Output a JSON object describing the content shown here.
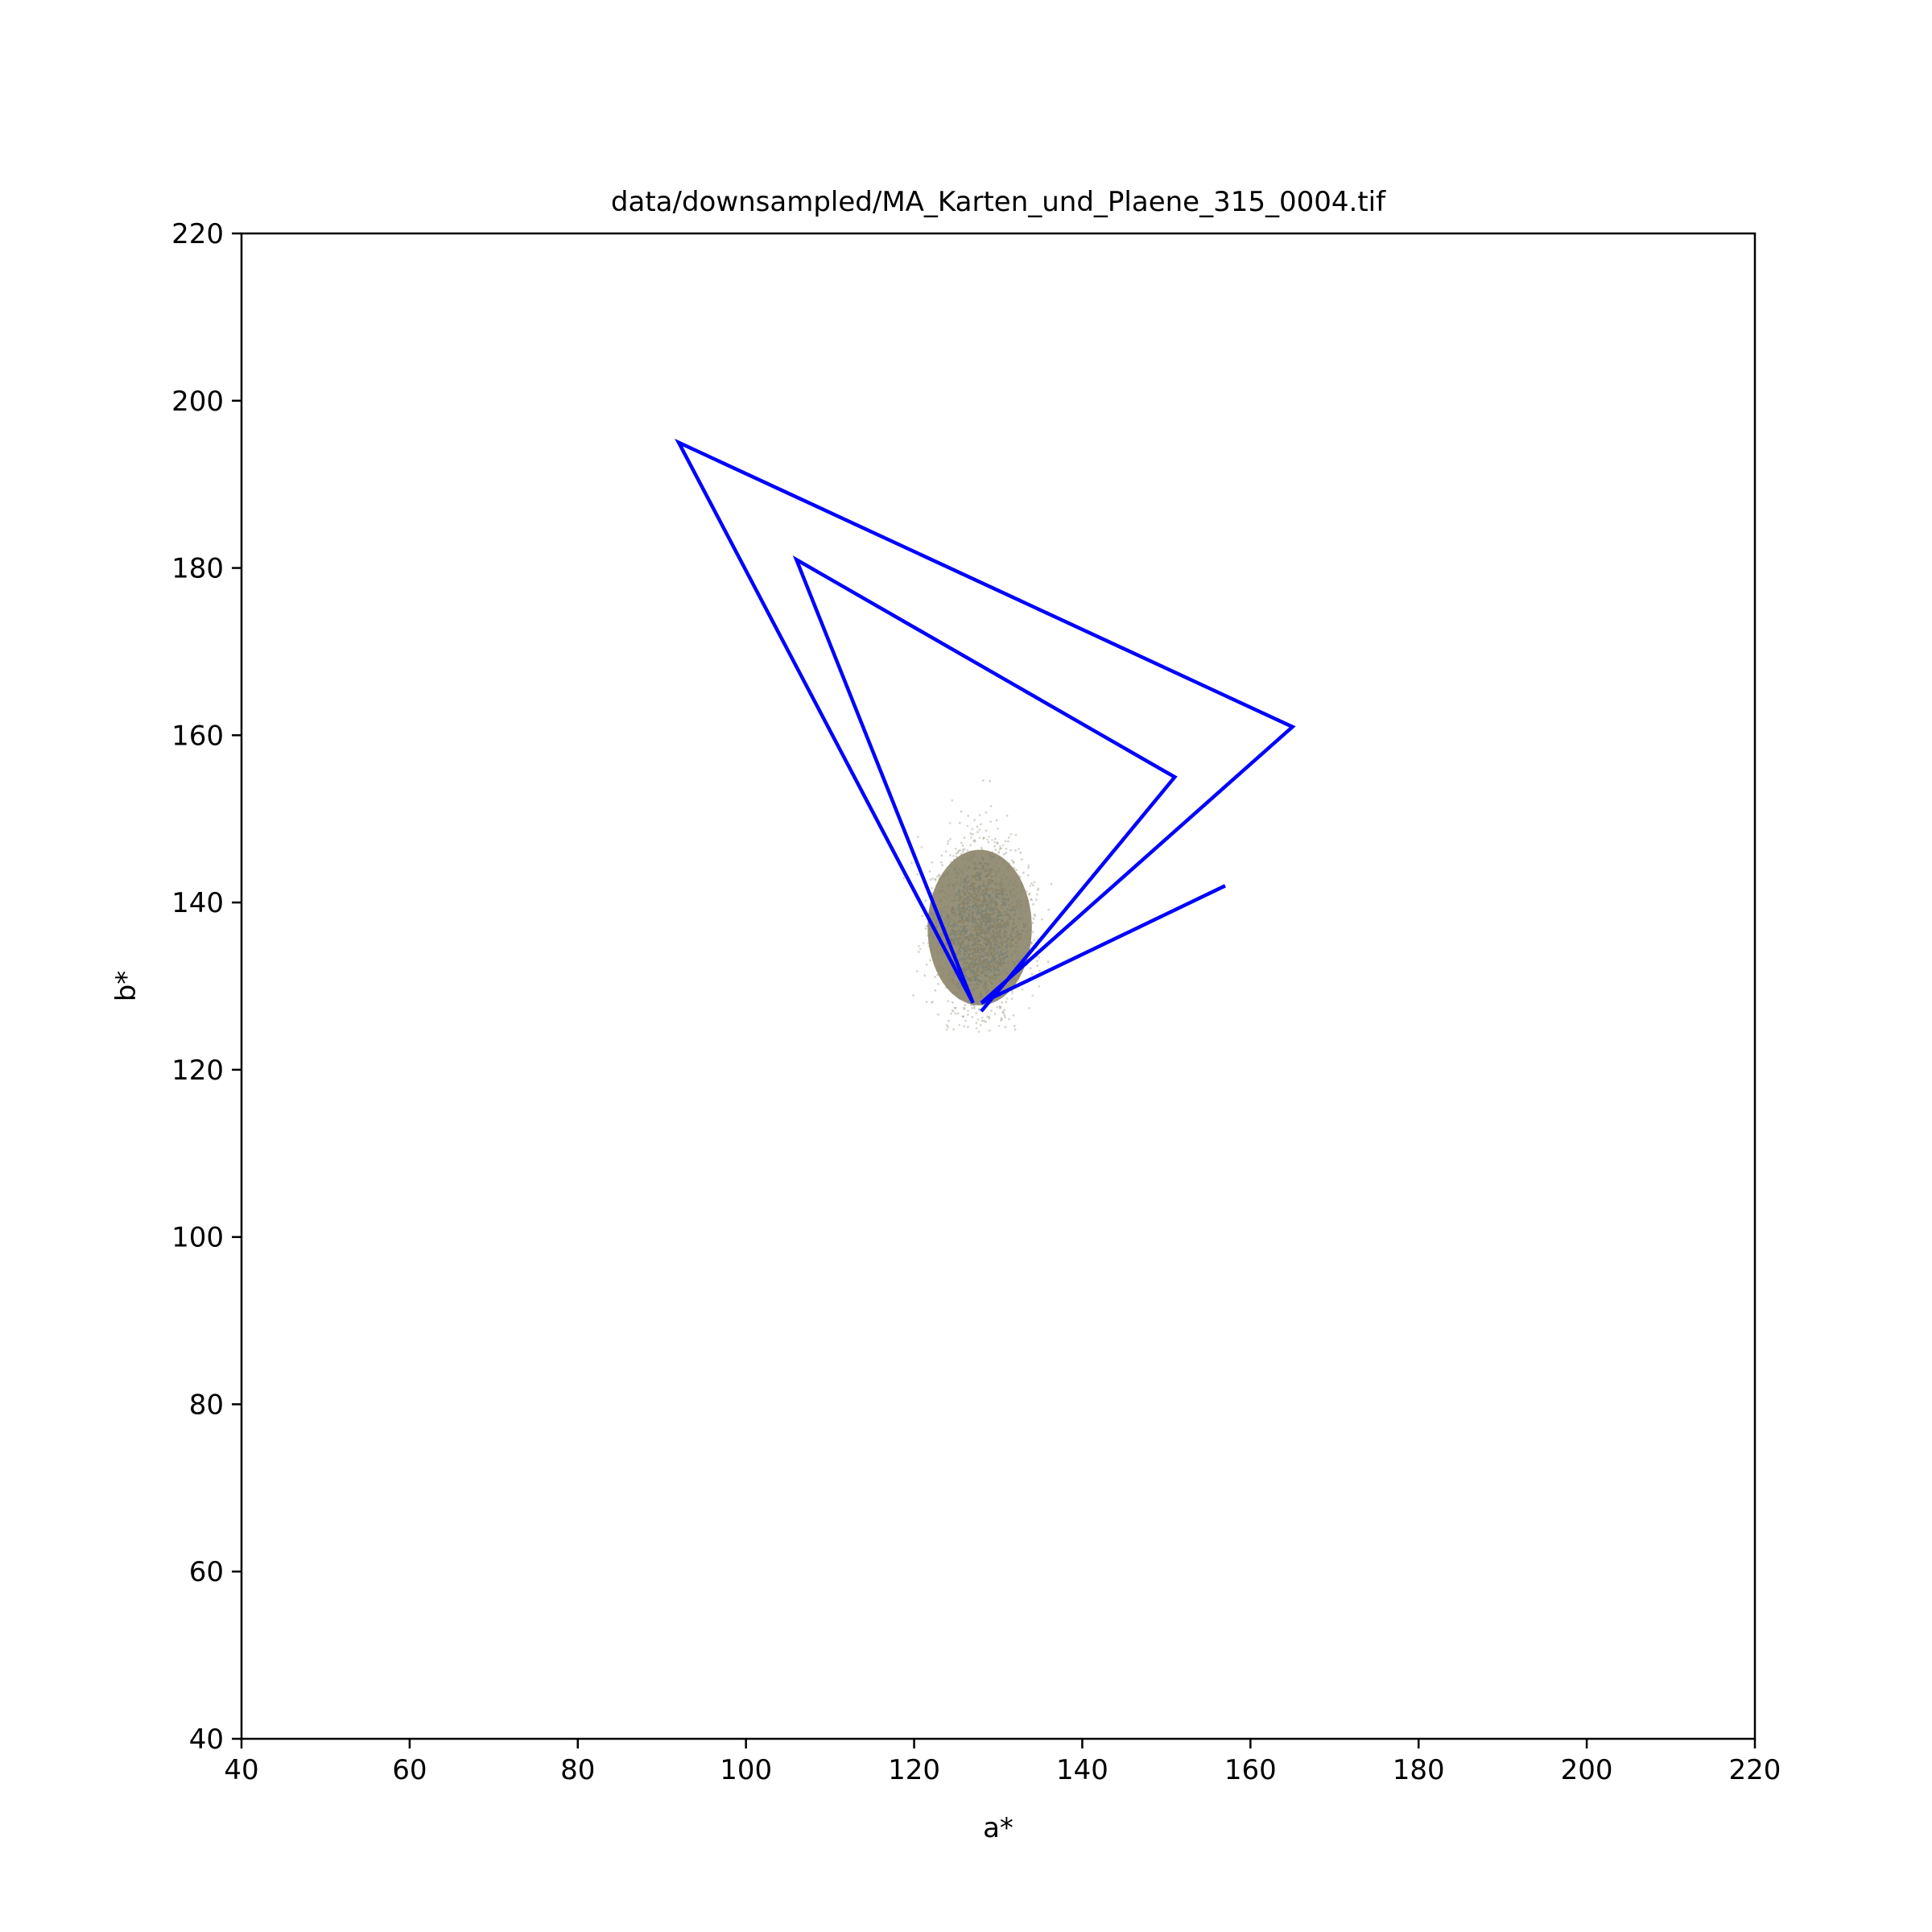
{
  "chart_data": {
    "type": "scatter",
    "title": "data/downsampled/MA_Karten_und_Plaene_315_0004.tif",
    "xlabel": "a*",
    "ylabel": "b*",
    "xlim": [
      40,
      220
    ],
    "ylim": [
      40,
      220
    ],
    "xticks": [
      40,
      60,
      80,
      100,
      120,
      140,
      160,
      180,
      200,
      220
    ],
    "yticks": [
      40,
      60,
      80,
      100,
      120,
      140,
      160,
      180,
      200,
      220
    ],
    "grid": false,
    "legend": "none",
    "point_cloud": {
      "center_a": 128,
      "center_b": 137,
      "a_range": [
        117,
        137
      ],
      "b_range": [
        123,
        158
      ],
      "colors": [
        "#8a8060",
        "#7f8070",
        "#8c8a70",
        "#7a8478",
        "#9a9480"
      ]
    },
    "line": {
      "color": "#0000ff",
      "points": [
        [
          157,
          142
        ],
        [
          128,
          128
        ],
        [
          165,
          161
        ],
        [
          92,
          195
        ],
        [
          127,
          128
        ],
        [
          106,
          181
        ],
        [
          151,
          155
        ],
        [
          128,
          127
        ]
      ]
    }
  }
}
